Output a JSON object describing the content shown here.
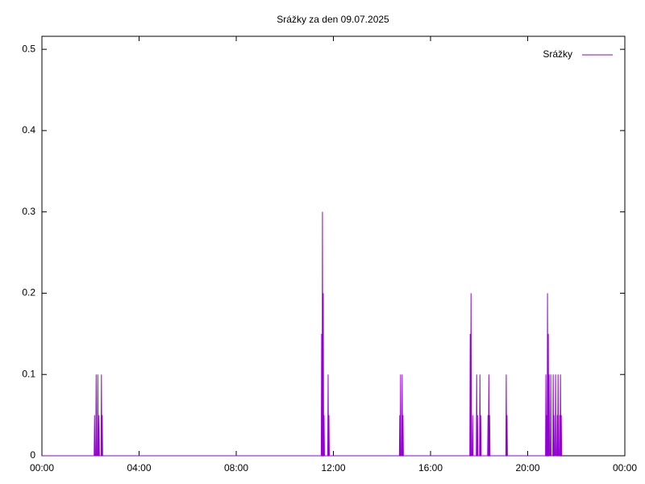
{
  "chart_data": {
    "type": "line",
    "title": "Srážky za den 09.07.2025",
    "x": [
      0,
      129,
      130,
      131,
      133,
      134,
      135,
      137,
      138,
      139,
      140,
      141,
      142,
      146,
      147,
      148,
      149,
      150,
      690,
      691,
      692,
      693,
      694,
      695,
      696,
      697,
      698,
      706,
      707,
      708,
      709,
      710,
      883,
      884,
      885,
      886,
      887,
      889,
      890,
      891,
      892,
      893,
      1057,
      1058,
      1059,
      1060,
      1061,
      1063,
      1064,
      1065,
      1073,
      1074,
      1075,
      1076,
      1077,
      1081,
      1082,
      1083,
      1084,
      1085,
      1101,
      1102,
      1103,
      1104,
      1105,
      1106,
      1107,
      1146,
      1147,
      1148,
      1149,
      1150,
      1244,
      1245,
      1246,
      1247,
      1248,
      1249,
      1250,
      1251,
      1252,
      1253,
      1254,
      1256,
      1257,
      1258,
      1262,
      1263,
      1264,
      1265,
      1266,
      1268,
      1269,
      1270,
      1272,
      1273,
      1274,
      1275,
      1276,
      1278,
      1279,
      1280,
      1281,
      1282,
      1283,
      1284
    ],
    "series": [
      {
        "name": "Srážky",
        "color": "#9400d3",
        "values": [
          0,
          0,
          0.05,
          0,
          0,
          0.1,
          0,
          0,
          0.1,
          0,
          0,
          0.05,
          0,
          0,
          0.1,
          0,
          0.05,
          0,
          0,
          0.15,
          0,
          0.3,
          0,
          0.2,
          0,
          0.05,
          0,
          0,
          0.1,
          0,
          0.05,
          0,
          0,
          0.05,
          0,
          0.1,
          0,
          0,
          0.1,
          0,
          0.05,
          0,
          0,
          0.15,
          0,
          0.2,
          0,
          0,
          0.05,
          0,
          0,
          0.1,
          0,
          0.05,
          0,
          0,
          0.1,
          0,
          0.05,
          0,
          0,
          0.05,
          0,
          0.1,
          0,
          0.05,
          0,
          0,
          0.1,
          0,
          0.05,
          0,
          0,
          0.1,
          0,
          0.05,
          0,
          0.2,
          0,
          0.15,
          0,
          0.1,
          0,
          0,
          0.1,
          0,
          0,
          0.1,
          0,
          0.05,
          0,
          0,
          0.1,
          0,
          0,
          0.05,
          0,
          0.1,
          0,
          0,
          0.05,
          0,
          0.1,
          0,
          0.05,
          0
        ]
      }
    ],
    "xlim": [
      0,
      1440
    ],
    "xticks": [
      {
        "value": 0,
        "label": "00:00"
      },
      {
        "value": 240,
        "label": "04:00"
      },
      {
        "value": 480,
        "label": "08:00"
      },
      {
        "value": 720,
        "label": "12:00"
      },
      {
        "value": 960,
        "label": "16:00"
      },
      {
        "value": 1200,
        "label": "20:00"
      },
      {
        "value": 1440,
        "label": "00:00"
      }
    ],
    "ylim": [
      0,
      0.516
    ],
    "yticks": [
      0,
      0.1,
      0.2,
      0.3,
      0.4,
      0.5
    ],
    "grid": false,
    "legend": "top-right"
  }
}
